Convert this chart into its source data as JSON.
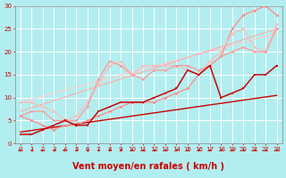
{
  "title": "",
  "xlabel": "Vent moyen/en rafales ( km/h )",
  "bg_color": "#b2eef0",
  "grid_color": "#ffffff",
  "xlim": [
    -0.5,
    23.5
  ],
  "ylim": [
    0,
    30
  ],
  "xticks": [
    0,
    1,
    2,
    3,
    4,
    5,
    6,
    7,
    8,
    9,
    10,
    11,
    12,
    13,
    14,
    15,
    16,
    17,
    18,
    19,
    20,
    21,
    22,
    23
  ],
  "yticks": [
    0,
    5,
    10,
    15,
    20,
    25,
    30
  ],
  "line1_x": [
    0,
    1,
    2,
    3,
    4,
    5,
    6,
    7,
    8,
    9,
    10,
    11,
    12,
    13,
    14,
    15,
    16,
    17,
    18,
    19,
    20,
    21,
    22,
    23
  ],
  "line1_y": [
    2,
    2,
    3,
    4,
    5,
    4,
    4,
    7,
    8,
    9,
    9,
    9,
    10,
    11,
    12,
    16,
    15,
    17,
    10,
    11,
    12,
    15,
    15,
    17
  ],
  "line1_color": "#cc0000",
  "line2_x": [
    0,
    1,
    2,
    3,
    4,
    5,
    6,
    7,
    8,
    9,
    10,
    11,
    12,
    13,
    14,
    15,
    16,
    17,
    18,
    19,
    20,
    21,
    22,
    23
  ],
  "line2_y": [
    6,
    7,
    7,
    5,
    5,
    5,
    8,
    14,
    18,
    17,
    15,
    14,
    16,
    16,
    17,
    17,
    16,
    17,
    19,
    20,
    21,
    20,
    20,
    25
  ],
  "line2_color": "#ff9999",
  "line3_x": [
    0,
    1,
    2,
    3,
    4,
    5,
    6,
    7,
    8,
    9,
    10,
    11,
    12,
    13,
    14,
    15,
    16,
    17,
    18,
    19,
    20,
    21,
    22,
    23
  ],
  "line3_y": [
    9,
    9,
    8,
    7,
    5,
    6,
    9,
    13,
    17,
    18,
    15,
    17,
    17,
    17,
    17,
    16,
    15,
    18,
    20,
    24,
    25,
    21,
    20,
    26
  ],
  "line3_color": "#ffbbbb",
  "line4_x": [
    0,
    1,
    2,
    3,
    4,
    5,
    6,
    7,
    8,
    9,
    10,
    11,
    12,
    13,
    14,
    15,
    16,
    17,
    18,
    19,
    20,
    21,
    22,
    23
  ],
  "line4_y": [
    6,
    5,
    4,
    3,
    4,
    4,
    5,
    6,
    7,
    8,
    9,
    9,
    9,
    10,
    11,
    12,
    15,
    17,
    19,
    25,
    28,
    29,
    30,
    28
  ],
  "line4_color": "#ff8888",
  "trend1_y0": 2.5,
  "trend1_y1": 10.5,
  "trend1_color": "#cc0000",
  "trend2_y0": 7.0,
  "trend2_y1": 25.0,
  "trend2_color": "#ffaaaa",
  "trend3_y0": 9.0,
  "trend3_y1": 24.0,
  "trend3_color": "#ffcccc",
  "line_lw": 0.9,
  "marker_size": 2.0,
  "xlabel_color": "#cc0000",
  "xlabel_fontsize": 7,
  "tick_fontsize": 5,
  "tick_color": "#cc0000",
  "spine_color": "#888888",
  "arrow_color": "#cc0000",
  "arrows_angles": [
    270,
    225,
    270,
    225,
    270,
    225,
    315,
    225,
    225,
    225,
    225,
    225,
    225,
    225,
    225,
    225,
    225,
    225,
    225,
    225,
    225,
    225,
    225,
    225
  ]
}
